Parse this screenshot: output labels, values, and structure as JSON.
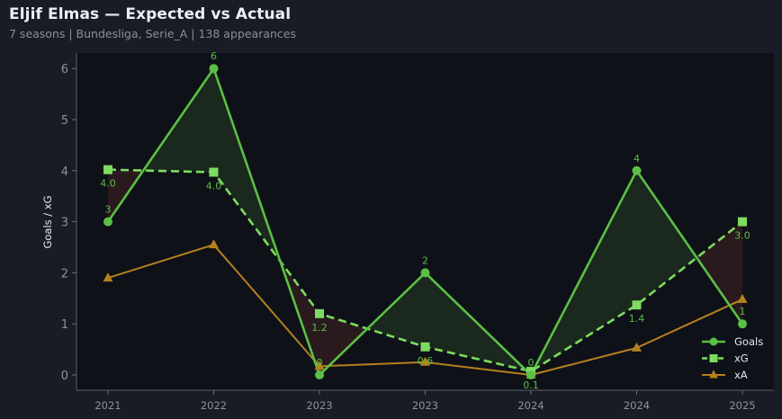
{
  "header": {
    "title": "Eljif Elmas — Expected vs Actual",
    "subtitle": "7 seasons | Bundesliga, Serie_A | 138 appearances"
  },
  "colors": {
    "goals": "#5bbf45",
    "xg": "#7ddb5f",
    "xa": "#b5801e",
    "over_fill": "#1c2b1e",
    "under_fill": "#2e1c1f",
    "background": "#181c24",
    "plot_bg": "#0e1118"
  },
  "chart_data": {
    "type": "line",
    "title": "Eljif Elmas — Expected vs Actual",
    "subtitle": "7 seasons | Bundesliga, Serie_A | 138 appearances",
    "xlabel": "",
    "ylabel": "Goals / xG",
    "categories": [
      "2021",
      "2022",
      "2023",
      "2023",
      "2024",
      "2024",
      "2025"
    ],
    "ylim": [
      -0.3,
      6.3
    ],
    "yticks": [
      0,
      1,
      2,
      3,
      4,
      5,
      6
    ],
    "grid": false,
    "legend_position": "lower right",
    "series": [
      {
        "name": "Goals",
        "marker": "circle",
        "style": "solid",
        "values": [
          3,
          6,
          0,
          2,
          0,
          4,
          1
        ],
        "labels": [
          "3",
          "6",
          "0",
          "2",
          "0",
          "4",
          "1"
        ]
      },
      {
        "name": "xG",
        "marker": "square",
        "style": "dashed",
        "values": [
          4.02,
          3.97,
          1.2,
          0.55,
          0.07,
          1.37,
          3.0
        ],
        "labels": [
          "4.0",
          "4.0",
          "1.2",
          "0.6",
          "0.1",
          "1.4",
          "3.0"
        ]
      },
      {
        "name": "xA",
        "marker": "triangle",
        "style": "solid",
        "values": [
          1.9,
          2.55,
          0.17,
          0.25,
          0.0,
          0.53,
          1.48
        ]
      }
    ],
    "annotations": "Shaded area between Goals and xG: green where Goals > xG, red where Goals < xG"
  }
}
